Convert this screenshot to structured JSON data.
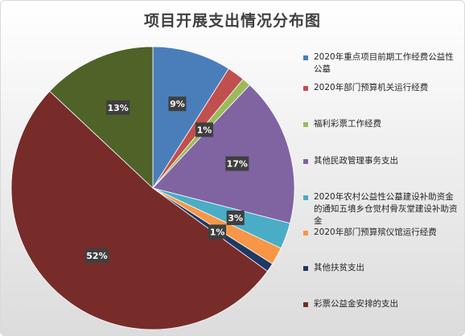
{
  "chart_data": {
    "type": "pie",
    "title": "项目开展支出情况分布图",
    "slices": [
      {
        "label": "2020年重点项目前期工作经费公益性公墓",
        "value": 9,
        "data_label": "9%",
        "color": "#4a7ebb"
      },
      {
        "label": "2020年部门预算机关运行经费",
        "value": 2,
        "data_label": "",
        "color": "#c0504d"
      },
      {
        "label": "福利彩票工作经费",
        "value": 1,
        "data_label": "1%",
        "color": "#9bbb59"
      },
      {
        "label": "其他民政管理事务支出",
        "value": 17,
        "data_label": "17%",
        "color": "#8064a2"
      },
      {
        "label": "2020年农村公益性公墓建设补助资金的通知五墳乡仓觉村骨灰堂建设补助资金",
        "value": 3,
        "data_label": "3%",
        "color": "#4bacc6"
      },
      {
        "label": "2020年部门预算殡仪馆运行经费",
        "value": 2,
        "data_label": "",
        "color": "#f79646"
      },
      {
        "label": "其他扶贫支出",
        "value": 1,
        "data_label": "1%",
        "color": "#1f3864"
      },
      {
        "label": "彩票公益金安排的支出",
        "value": 52,
        "data_label": "52%",
        "color": "#772c2a"
      },
      {
        "label": "",
        "value": 13,
        "data_label": "13%",
        "color": "#4f6228"
      }
    ],
    "legend_position": "right"
  }
}
